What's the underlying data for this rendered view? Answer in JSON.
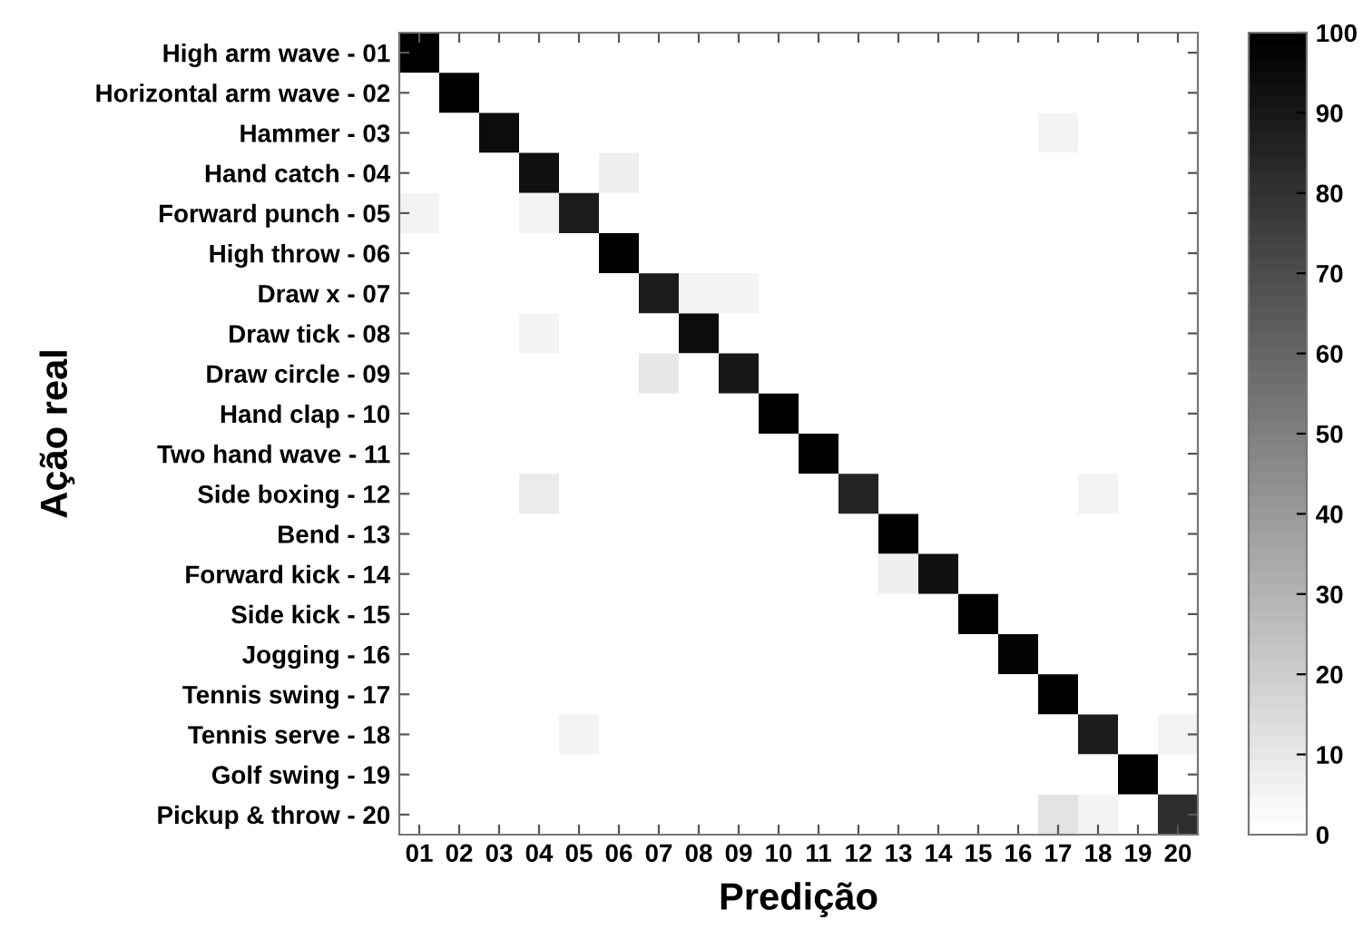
{
  "chart_data": {
    "type": "heatmap",
    "xlabel": "Predição",
    "ylabel": "Ação real",
    "categories": [
      "01",
      "02",
      "03",
      "04",
      "05",
      "06",
      "07",
      "08",
      "09",
      "10",
      "11",
      "12",
      "13",
      "14",
      "15",
      "16",
      "17",
      "18",
      "19",
      "20"
    ],
    "y_categories": [
      "High arm wave - 01",
      "Horizontal arm wave - 02",
      "Hammer - 03",
      "Hand catch - 04",
      "Forward punch - 05",
      "High throw - 06",
      "Draw x - 07",
      "Draw tick - 08",
      "Draw circle - 09",
      "Hand clap - 10",
      "Two hand wave - 11",
      "Side boxing - 12",
      "Bend - 13",
      "Forward kick - 14",
      "Side kick - 15",
      "Jogging - 16",
      "Tennis swing - 17",
      "Tennis serve - 18",
      "Golf swing - 19",
      "Pickup & throw - 20"
    ],
    "cells": [
      [
        100,
        0,
        0,
        0,
        0,
        0,
        0,
        0,
        0,
        0,
        0,
        0,
        0,
        0,
        0,
        0,
        0,
        0,
        0,
        0
      ],
      [
        0,
        100,
        0,
        0,
        0,
        0,
        0,
        0,
        0,
        0,
        0,
        0,
        0,
        0,
        0,
        0,
        0,
        0,
        0,
        0
      ],
      [
        0,
        0,
        94,
        0,
        0,
        0,
        0,
        0,
        0,
        0,
        0,
        0,
        0,
        0,
        0,
        0,
        6,
        0,
        0,
        0
      ],
      [
        0,
        0,
        0,
        93,
        0,
        7,
        0,
        0,
        0,
        0,
        0,
        0,
        0,
        0,
        0,
        0,
        0,
        0,
        0,
        0
      ],
      [
        6,
        0,
        0,
        6,
        88,
        0,
        0,
        0,
        0,
        0,
        0,
        0,
        0,
        0,
        0,
        0,
        0,
        0,
        0,
        0
      ],
      [
        0,
        0,
        0,
        0,
        0,
        100,
        0,
        0,
        0,
        0,
        0,
        0,
        0,
        0,
        0,
        0,
        0,
        0,
        0,
        0
      ],
      [
        0,
        0,
        0,
        0,
        0,
        0,
        88,
        6,
        6,
        0,
        0,
        0,
        0,
        0,
        0,
        0,
        0,
        0,
        0,
        0
      ],
      [
        0,
        0,
        0,
        6,
        0,
        0,
        0,
        94,
        0,
        0,
        0,
        0,
        0,
        0,
        0,
        0,
        0,
        0,
        0,
        0
      ],
      [
        0,
        0,
        0,
        0,
        0,
        0,
        10,
        0,
        90,
        0,
        0,
        0,
        0,
        0,
        0,
        0,
        0,
        0,
        0,
        0
      ],
      [
        0,
        0,
        0,
        0,
        0,
        0,
        0,
        0,
        0,
        100,
        0,
        0,
        0,
        0,
        0,
        0,
        0,
        0,
        0,
        0
      ],
      [
        0,
        0,
        0,
        0,
        0,
        0,
        0,
        0,
        0,
        0,
        100,
        0,
        0,
        0,
        0,
        0,
        0,
        0,
        0,
        0
      ],
      [
        0,
        0,
        0,
        9,
        0,
        0,
        0,
        0,
        0,
        0,
        0,
        85,
        0,
        0,
        0,
        0,
        0,
        6,
        0,
        0
      ],
      [
        0,
        0,
        0,
        0,
        0,
        0,
        0,
        0,
        0,
        0,
        0,
        0,
        100,
        0,
        0,
        0,
        0,
        0,
        0,
        0
      ],
      [
        0,
        0,
        0,
        0,
        0,
        0,
        0,
        0,
        0,
        0,
        0,
        0,
        7,
        93,
        0,
        0,
        0,
        0,
        0,
        0
      ],
      [
        0,
        0,
        0,
        0,
        0,
        0,
        0,
        0,
        0,
        0,
        0,
        0,
        0,
        0,
        100,
        0,
        0,
        0,
        0,
        0
      ],
      [
        0,
        0,
        0,
        0,
        0,
        0,
        0,
        0,
        0,
        0,
        0,
        0,
        0,
        0,
        0,
        97,
        0,
        0,
        0,
        0
      ],
      [
        0,
        0,
        0,
        0,
        0,
        0,
        0,
        0,
        0,
        0,
        0,
        0,
        0,
        0,
        0,
        0,
        100,
        0,
        0,
        0
      ],
      [
        0,
        0,
        0,
        0,
        6,
        0,
        0,
        0,
        0,
        0,
        0,
        0,
        0,
        0,
        0,
        0,
        0,
        88,
        0,
        6
      ],
      [
        0,
        0,
        0,
        0,
        0,
        0,
        0,
        0,
        0,
        0,
        0,
        0,
        0,
        0,
        0,
        0,
        0,
        0,
        100,
        0
      ],
      [
        0,
        0,
        0,
        0,
        0,
        0,
        0,
        0,
        0,
        0,
        0,
        0,
        0,
        0,
        0,
        0,
        12,
        6,
        0,
        82
      ]
    ],
    "clim": [
      0,
      100
    ],
    "cticks": [
      0,
      10,
      20,
      30,
      40,
      50,
      60,
      70,
      80,
      90,
      100
    ]
  }
}
